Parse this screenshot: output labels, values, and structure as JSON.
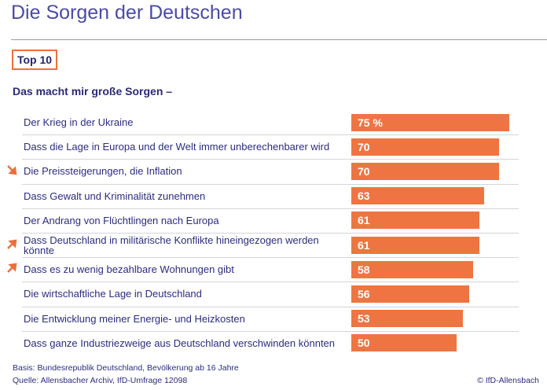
{
  "chart_data": {
    "type": "bar",
    "orientation": "horizontal",
    "title": "Die Sorgen der Deutschen",
    "badge": "Top 10",
    "subtitle": "Das macht mir große Sorgen –",
    "categories": [
      "Der Krieg in der Ukraine",
      "Dass die Lage in Europa und der Welt immer unberechenbarer wird",
      "Die Preissteigerungen, die Inflation",
      "Dass Gewalt und Kriminalität zunehmen",
      "Der Andrang von Flüchtlingen nach Europa",
      "Dass Deutschland in militärische Konflikte hineingezogen werden könnte",
      "Dass es zu wenig bezahlbare Wohnungen gibt",
      "Die wirtschaftliche Lage in Deutschland",
      "Die Entwicklung meiner Energie- und Heizkosten",
      "Dass ganze Industriezweige aus Deutschland verschwinden könnten"
    ],
    "values": [
      75,
      70,
      70,
      63,
      61,
      61,
      58,
      56,
      53,
      50
    ],
    "value_labels": [
      "75 %",
      "70",
      "70",
      "63",
      "61",
      "61",
      "58",
      "56",
      "53",
      "50"
    ],
    "color": "#ee7542",
    "footnotes": [
      "Basis: Bundesrepublik Deutschland, Bevölkerung ab 16 Jahre",
      "Quelle: Allensbacher Archiv, IfD-Umfrage 12098"
    ],
    "source": "© IfD-Allensbach"
  }
}
